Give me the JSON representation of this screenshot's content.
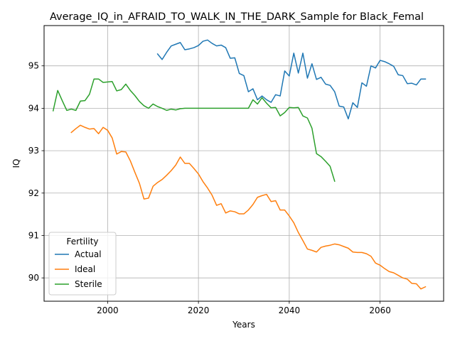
{
  "chart_data": {
    "type": "line",
    "title": "Average_IQ_in_AFRAID_TO_WALK_IN_THE_DARK_Sample for Black_Femal",
    "xlabel": "Years",
    "ylabel": "IQ",
    "xlim": [
      1986,
      2074
    ],
    "ylim": [
      89.45,
      95.95
    ],
    "xticks": [
      2000,
      2020,
      2040,
      2060
    ],
    "yticks": [
      90,
      91,
      92,
      93,
      94,
      95
    ],
    "grid": true,
    "legend": {
      "title": "Fertility",
      "placement": "lower-left"
    },
    "series": [
      {
        "name": "Actual",
        "color": "#1f77b4",
        "x": [
          2011,
          2012,
          2013,
          2014,
          2015,
          2016,
          2017,
          2018,
          2019,
          2020,
          2021,
          2022,
          2023,
          2024,
          2025,
          2026,
          2027,
          2028,
          2029,
          2030,
          2031,
          2032,
          2033,
          2034,
          2035,
          2036,
          2037,
          2038,
          2039,
          2040,
          2041,
          2042,
          2043,
          2044,
          2045,
          2046,
          2047,
          2048,
          2049,
          2050,
          2051,
          2052,
          2053,
          2054,
          2055,
          2056,
          2057,
          2058,
          2059,
          2060,
          2061,
          2062,
          2063,
          2064,
          2065,
          2066,
          2067,
          2068,
          2069,
          2070
        ],
        "y": [
          95.28,
          95.15,
          95.32,
          95.47,
          95.51,
          95.55,
          95.38,
          95.4,
          95.43,
          95.48,
          95.58,
          95.61,
          95.53,
          95.47,
          95.49,
          95.43,
          95.18,
          95.19,
          94.82,
          94.77,
          94.39,
          94.46,
          94.2,
          94.29,
          94.2,
          94.14,
          94.32,
          94.29,
          94.88,
          94.76,
          95.3,
          94.83,
          95.3,
          94.71,
          95.05,
          94.68,
          94.73,
          94.57,
          94.54,
          94.39,
          94.05,
          94.03,
          93.75,
          94.13,
          94.02,
          94.6,
          94.52,
          95.0,
          94.95,
          95.13,
          95.1,
          95.05,
          94.99,
          94.79,
          94.77,
          94.58,
          94.59,
          94.55,
          94.69,
          94.69
        ]
      },
      {
        "name": "Ideal",
        "color": "#ff7f0e",
        "x": [
          1992,
          1993,
          1994,
          1995,
          1996,
          1997,
          1998,
          1999,
          2000,
          2001,
          2002,
          2003,
          2004,
          2005,
          2006,
          2007,
          2008,
          2009,
          2010,
          2011,
          2012,
          2013,
          2014,
          2015,
          2016,
          2017,
          2018,
          2019,
          2020,
          2021,
          2022,
          2023,
          2024,
          2025,
          2026,
          2027,
          2028,
          2029,
          2030,
          2031,
          2032,
          2033,
          2034,
          2035,
          2036,
          2037,
          2038,
          2039,
          2040,
          2041,
          2042,
          2043,
          2044,
          2045,
          2046,
          2047,
          2048,
          2049,
          2050,
          2051,
          2052,
          2053,
          2054,
          2055,
          2056,
          2057,
          2058,
          2059,
          2060,
          2061,
          2062,
          2063,
          2064,
          2065,
          2066,
          2067,
          2068,
          2069,
          2070
        ],
        "y": [
          93.43,
          93.52,
          93.6,
          93.55,
          93.51,
          93.52,
          93.4,
          93.55,
          93.48,
          93.3,
          92.92,
          92.98,
          92.97,
          92.76,
          92.49,
          92.23,
          91.86,
          91.88,
          92.16,
          92.25,
          92.32,
          92.42,
          92.53,
          92.66,
          92.85,
          92.7,
          92.7,
          92.58,
          92.45,
          92.27,
          92.12,
          91.95,
          91.71,
          91.75,
          91.53,
          91.58,
          91.56,
          91.51,
          91.51,
          91.6,
          91.73,
          91.9,
          91.94,
          91.97,
          91.8,
          91.82,
          91.6,
          91.6,
          91.46,
          91.3,
          91.07,
          90.88,
          90.68,
          90.65,
          90.61,
          90.72,
          90.75,
          90.77,
          90.8,
          90.78,
          90.74,
          90.7,
          90.61,
          90.6,
          90.6,
          90.57,
          90.51,
          90.35,
          90.3,
          90.22,
          90.15,
          90.12,
          90.06,
          90.0,
          89.97,
          89.87,
          89.86,
          89.74,
          89.79
        ]
      },
      {
        "name": "Sterile",
        "color": "#2ca02c",
        "x": [
          1988,
          1989,
          1990,
          1991,
          1992,
          1993,
          1994,
          1995,
          1996,
          1997,
          1998,
          1999,
          2000,
          2001,
          2002,
          2003,
          2004,
          2005,
          2006,
          2007,
          2008,
          2009,
          2010,
          2011,
          2012,
          2013,
          2014,
          2015,
          2016,
          2017,
          2018,
          2019,
          2020,
          2021,
          2022,
          2023,
          2024,
          2025,
          2026,
          2027,
          2028,
          2029,
          2030,
          2031,
          2032,
          2033,
          2034,
          2035,
          2036,
          2037,
          2038,
          2039,
          2040,
          2041,
          2042,
          2043,
          2044,
          2045,
          2046,
          2047,
          2048,
          2049,
          2050
        ],
        "y": [
          93.94,
          94.42,
          94.18,
          93.95,
          93.98,
          93.95,
          94.17,
          94.18,
          94.33,
          94.69,
          94.69,
          94.61,
          94.62,
          94.63,
          94.41,
          94.44,
          94.57,
          94.42,
          94.3,
          94.16,
          94.06,
          94.0,
          94.1,
          94.04,
          94.0,
          93.95,
          93.98,
          93.96,
          93.99,
          94.0,
          94.0,
          94.0,
          94.0,
          94.0,
          94.0,
          94.0,
          94.0,
          94.0,
          94.0,
          94.0,
          94.0,
          94.0,
          94.0,
          94.0,
          94.2,
          94.1,
          94.25,
          94.12,
          94.01,
          94.02,
          93.82,
          93.9,
          94.02,
          94.01,
          94.02,
          93.82,
          93.77,
          93.53,
          92.93,
          92.86,
          92.75,
          92.63,
          92.28
        ]
      }
    ]
  }
}
